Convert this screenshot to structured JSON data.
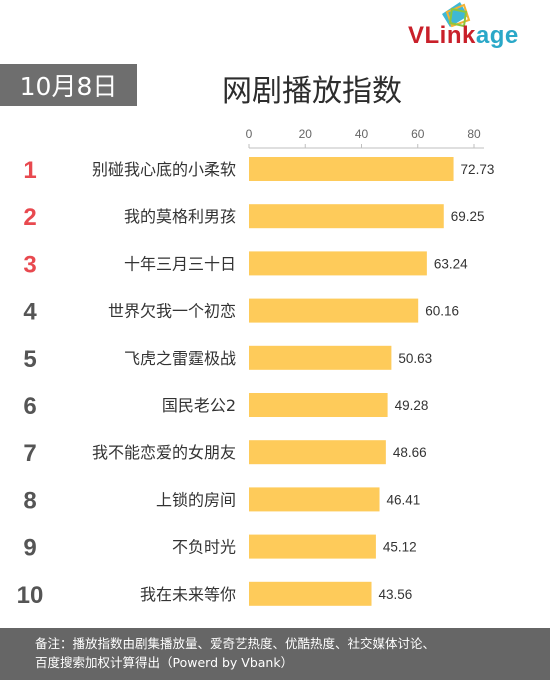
{
  "header": {
    "logo": {
      "parts": [
        "VLink",
        "age"
      ],
      "colors": {
        "vl": "#c9202a",
        "age": "#2aa8c8"
      }
    },
    "date": "10月8日",
    "title": "网剧播放指数"
  },
  "chart_data": {
    "type": "bar",
    "orientation": "horizontal",
    "ranks": [
      "1",
      "2",
      "3",
      "4",
      "5",
      "6",
      "7",
      "8",
      "9",
      "10"
    ],
    "categories": [
      "别碰我心底的小柔软",
      "我的莫格利男孩",
      "十年三月三十日",
      "世界欠我一个初恋",
      "飞虎之雷霆极战",
      "国民老公2",
      "我不能恋爱的女朋友",
      "上锁的房间",
      "不负时光",
      "我在未来等你"
    ],
    "values": [
      72.73,
      69.25,
      63.24,
      60.16,
      50.63,
      49.28,
      48.66,
      46.41,
      45.12,
      43.56
    ],
    "value_labels": [
      "72.73",
      "69.25",
      "63.24",
      "60.16",
      "50.63",
      "49.28",
      "48.66",
      "46.41",
      "45.12",
      "43.56"
    ],
    "xticks": [
      0,
      20,
      40,
      60,
      80
    ],
    "xlim": [
      0,
      80
    ],
    "axis_position": "top",
    "grid": false,
    "colors": {
      "bar": "#fecb5a",
      "rank_top": "#e8494f",
      "rank_other": "#555555",
      "axis": "#bfbfbf"
    }
  },
  "footer": {
    "lines": [
      "备注：播放指数由剧集播放量、爱奇艺热度、优酷热度、社交媒体讨论、",
      "百度搜索加权计算得出（Powerd by Vbank）"
    ]
  }
}
